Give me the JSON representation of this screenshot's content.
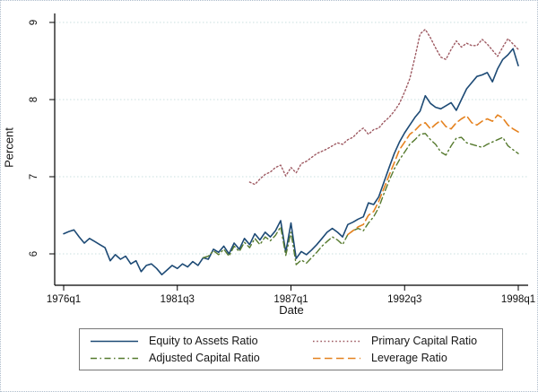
{
  "figure": {
    "y_axis_label": "Percent",
    "x_axis_label": "Date",
    "y_ticks": [
      6,
      7,
      8,
      9
    ],
    "x_tick_labels": [
      "1976q1",
      "1981q3",
      "1987q1",
      "1992q3",
      "1998q1"
    ],
    "x_tick_indices": [
      0,
      22,
      44,
      66,
      88
    ],
    "grid_color": "#c9dfdf",
    "axis_color": "#000000",
    "legend_border_color": "#767676"
  },
  "legend": {
    "items": [
      {
        "label": "Equity to Assets Ratio",
        "color": "#1d4a75",
        "line_style": "solid"
      },
      {
        "label": "Primary Capital Ratio",
        "color": "#9e5a62",
        "line_style": "dotted"
      },
      {
        "label": "Adjusted Capital Ratio",
        "color": "#567a2e",
        "line_style": "dash-dot"
      },
      {
        "label": "Leverage Ratio",
        "color": "#e5821f",
        "line_style": "dashed"
      }
    ]
  },
  "chart_data": {
    "type": "line",
    "title": "",
    "xlabel": "Date",
    "ylabel": "Percent",
    "x_unit": "quarter",
    "x_start": "1976q1",
    "x_end": "1998q1",
    "x_count": 89,
    "x_tick_labels": [
      "1976q1",
      "1981q3",
      "1987q1",
      "1992q3",
      "1998q1"
    ],
    "x_tick_indices": [
      0,
      22,
      44,
      66,
      88
    ],
    "ylim": [
      5.6,
      9.12
    ],
    "y_ticks": [
      6,
      7,
      8,
      9
    ],
    "grid": "horizontal dotted gridlines at y ticks",
    "legend_position": "bottom",
    "series": [
      {
        "name": "Equity to Assets Ratio",
        "color": "#1d4a75",
        "line_style": "solid",
        "start_quarter": "1976q1",
        "start_index": 0,
        "values": [
          6.26,
          6.29,
          6.31,
          6.22,
          6.14,
          6.2,
          6.16,
          6.12,
          6.08,
          5.91,
          5.99,
          5.93,
          5.97,
          5.87,
          5.91,
          5.77,
          5.85,
          5.87,
          5.81,
          5.73,
          5.79,
          5.85,
          5.81,
          5.87,
          5.83,
          5.9,
          5.85,
          5.95,
          5.93,
          6.06,
          6.02,
          6.1,
          6.0,
          6.14,
          6.06,
          6.2,
          6.12,
          6.26,
          6.18,
          6.28,
          6.22,
          6.3,
          6.43,
          6.02,
          6.4,
          5.94,
          6.03,
          5.99,
          6.05,
          6.12,
          6.2,
          6.28,
          6.33,
          6.28,
          6.22,
          6.38,
          6.41,
          6.45,
          6.48,
          6.66,
          6.64,
          6.74,
          6.93,
          7.12,
          7.3,
          7.45,
          7.57,
          7.67,
          7.77,
          7.85,
          8.05,
          7.95,
          7.9,
          7.88,
          7.92,
          7.96,
          7.86,
          8.0,
          8.14,
          8.22,
          8.3,
          8.32,
          8.35,
          8.23,
          8.4,
          8.52,
          8.58,
          8.66,
          8.44
        ]
      },
      {
        "name": "Primary Capital Ratio",
        "color": "#9e5a62",
        "line_style": "dotted",
        "start_quarter": "1985q1",
        "start_index": 36,
        "values": [
          6.93,
          6.9,
          6.97,
          7.03,
          7.06,
          7.12,
          7.15,
          7.01,
          7.12,
          7.05,
          7.17,
          7.2,
          7.25,
          7.3,
          7.33,
          7.36,
          7.4,
          7.44,
          7.42,
          7.48,
          7.51,
          7.58,
          7.63,
          7.55,
          7.61,
          7.63,
          7.71,
          7.77,
          7.85,
          7.95,
          8.1,
          8.27,
          8.55,
          8.85,
          8.91,
          8.8,
          8.67,
          8.55,
          8.52,
          8.65,
          8.76,
          8.68,
          8.73,
          8.7,
          8.7,
          8.78,
          8.72,
          8.64,
          8.56,
          8.68,
          8.79,
          8.72,
          8.65
        ]
      },
      {
        "name": "Adjusted Capital Ratio",
        "color": "#567a2e",
        "line_style": "dash-dot",
        "start_quarter": "1982q4",
        "start_index": 27,
        "values": [
          5.95,
          5.97,
          6.04,
          5.99,
          6.06,
          5.97,
          6.1,
          6.03,
          6.15,
          6.08,
          6.2,
          6.12,
          6.22,
          6.17,
          6.24,
          6.35,
          5.98,
          6.28,
          5.86,
          5.92,
          5.88,
          5.95,
          6.02,
          6.1,
          6.16,
          6.22,
          6.18,
          6.12,
          6.25,
          6.3,
          6.33,
          6.3,
          6.4,
          6.48,
          6.6,
          6.78,
          6.95,
          7.1,
          7.22,
          7.32,
          7.42,
          7.48,
          7.55,
          7.56,
          7.48,
          7.42,
          7.32,
          7.28,
          7.4,
          7.5,
          7.51,
          7.44,
          7.42,
          7.4,
          7.38,
          7.42,
          7.45,
          7.48,
          7.51,
          7.4,
          7.35,
          7.3
        ]
      },
      {
        "name": "Leverage Ratio",
        "color": "#e5821f",
        "line_style": "dashed",
        "start_quarter": "1989q4",
        "start_index": 55,
        "values": [
          6.25,
          6.3,
          6.35,
          6.38,
          6.5,
          6.55,
          6.68,
          6.85,
          7.02,
          7.18,
          7.35,
          7.45,
          7.55,
          7.6,
          7.67,
          7.7,
          7.62,
          7.68,
          7.73,
          7.65,
          7.62,
          7.7,
          7.75,
          7.79,
          7.7,
          7.67,
          7.72,
          7.75,
          7.72,
          7.8,
          7.76,
          7.67,
          7.62,
          7.58
        ]
      }
    ]
  }
}
